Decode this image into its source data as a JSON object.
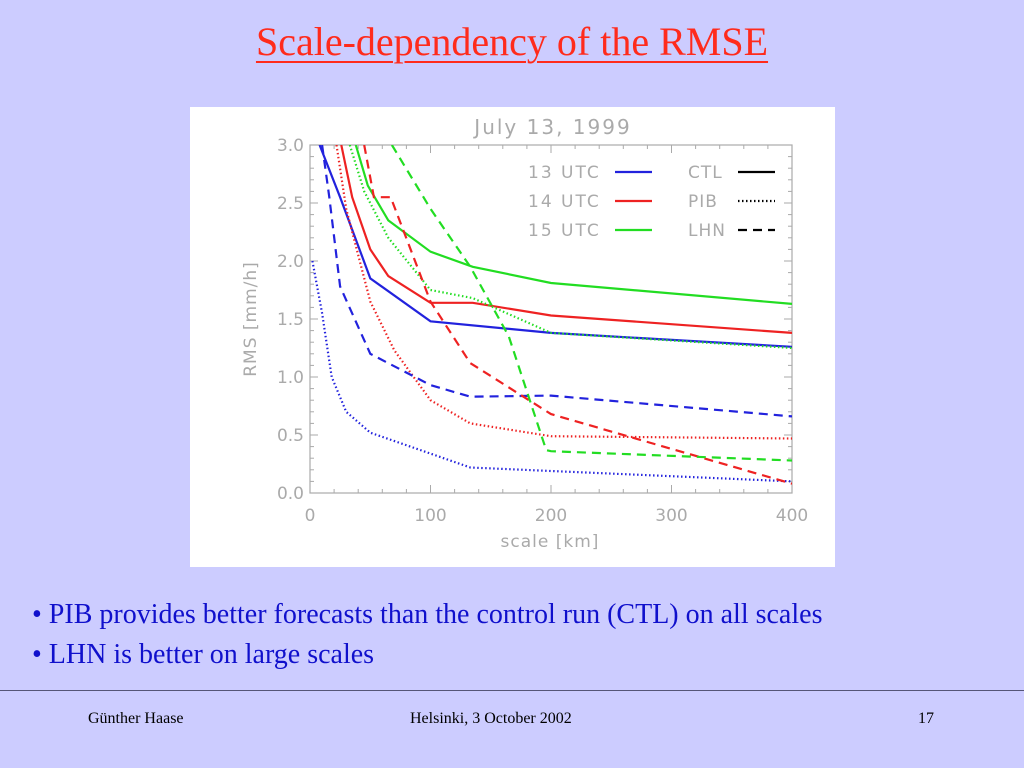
{
  "slide": {
    "title": "Scale-dependency of the RMSE",
    "bullets": [
      "• PIB provides better forecasts than the control run (CTL) on all scales",
      "• LHN is better on large scales"
    ],
    "footer": {
      "author": "Günther Haase",
      "event": "Helsinki, 3 October 2002",
      "page": "17"
    }
  },
  "chart_data": {
    "type": "line",
    "title": "July 13, 1999",
    "xlabel": "scale [km]",
    "ylabel": "RMS [mm/h]",
    "xlim": [
      0,
      400
    ],
    "ylim": [
      0,
      3.0
    ],
    "xticks": [
      "0",
      "100",
      "200",
      "300",
      "400"
    ],
    "yticks": [
      "0.0",
      "0.5",
      "1.0",
      "1.5",
      "2.0",
      "2.5",
      "3.0"
    ],
    "grid": false,
    "legend_position": "top-right",
    "legend_times": [
      {
        "label": "13 UTC",
        "color": "#2222dd"
      },
      {
        "label": "14 UTC",
        "color": "#ee2222"
      },
      {
        "label": "15 UTC",
        "color": "#22dd22"
      }
    ],
    "legend_styles": [
      {
        "label": "CTL",
        "dash": "solid"
      },
      {
        "label": "PIB",
        "dash": "dotted"
      },
      {
        "label": "LHN",
        "dash": "dashed"
      }
    ],
    "series": [
      {
        "time": "13 UTC",
        "run": "CTL",
        "color": "#2222dd",
        "dash": "solid",
        "points": [
          [
            8,
            3.0
          ],
          [
            25,
            2.55
          ],
          [
            50,
            1.85
          ],
          [
            100,
            1.48
          ],
          [
            200,
            1.38
          ],
          [
            400,
            1.26
          ]
        ]
      },
      {
        "time": "14 UTC",
        "run": "CTL",
        "color": "#ee2222",
        "dash": "solid",
        "points": [
          [
            26,
            3.0
          ],
          [
            35,
            2.55
          ],
          [
            50,
            2.1
          ],
          [
            65,
            1.87
          ],
          [
            100,
            1.64
          ],
          [
            135,
            1.64
          ],
          [
            200,
            1.53
          ],
          [
            400,
            1.38
          ]
        ]
      },
      {
        "time": "15 UTC",
        "run": "CTL",
        "color": "#22dd22",
        "dash": "solid",
        "points": [
          [
            38,
            3.0
          ],
          [
            48,
            2.65
          ],
          [
            65,
            2.35
          ],
          [
            100,
            2.08
          ],
          [
            135,
            1.95
          ],
          [
            200,
            1.81
          ],
          [
            400,
            1.63
          ]
        ]
      },
      {
        "time": "13 UTC",
        "run": "PIB",
        "color": "#2222dd",
        "dash": "dotted",
        "points": [
          [
            2,
            2.0
          ],
          [
            10,
            1.55
          ],
          [
            18,
            1.0
          ],
          [
            30,
            0.7
          ],
          [
            50,
            0.52
          ],
          [
            100,
            0.34
          ],
          [
            133,
            0.22
          ],
          [
            200,
            0.19
          ],
          [
            400,
            0.1
          ]
        ]
      },
      {
        "time": "14 UTC",
        "run": "PIB",
        "color": "#ee2222",
        "dash": "dotted",
        "points": [
          [
            22,
            3.0
          ],
          [
            30,
            2.45
          ],
          [
            50,
            1.65
          ],
          [
            70,
            1.23
          ],
          [
            100,
            0.8
          ],
          [
            133,
            0.6
          ],
          [
            200,
            0.49
          ],
          [
            400,
            0.47
          ]
        ]
      },
      {
        "time": "15 UTC",
        "run": "PIB",
        "color": "#22dd22",
        "dash": "dotted",
        "points": [
          [
            33,
            3.0
          ],
          [
            45,
            2.6
          ],
          [
            65,
            2.2
          ],
          [
            100,
            1.75
          ],
          [
            135,
            1.68
          ],
          [
            200,
            1.38
          ],
          [
            400,
            1.25
          ]
        ]
      },
      {
        "time": "13 UTC",
        "run": "LHN",
        "color": "#2222dd",
        "dash": "dashed",
        "points": [
          [
            10,
            3.0
          ],
          [
            16,
            2.55
          ],
          [
            25,
            1.78
          ],
          [
            50,
            1.2
          ],
          [
            100,
            0.93
          ],
          [
            133,
            0.83
          ],
          [
            200,
            0.84
          ],
          [
            400,
            0.66
          ]
        ]
      },
      {
        "time": "14 UTC",
        "run": "LHN",
        "color": "#ee2222",
        "dash": "dashed",
        "points": [
          [
            45,
            3.0
          ],
          [
            53,
            2.55
          ],
          [
            67,
            2.55
          ],
          [
            100,
            1.65
          ],
          [
            133,
            1.12
          ],
          [
            200,
            0.68
          ],
          [
            400,
            0.08
          ]
        ]
      },
      {
        "time": "15 UTC",
        "run": "LHN",
        "color": "#22dd22",
        "dash": "dashed",
        "points": [
          [
            68,
            3.0
          ],
          [
            100,
            2.45
          ],
          [
            133,
            1.95
          ],
          [
            165,
            1.35
          ],
          [
            196,
            0.37
          ],
          [
            200,
            0.36
          ],
          [
            400,
            0.28
          ]
        ]
      }
    ]
  }
}
